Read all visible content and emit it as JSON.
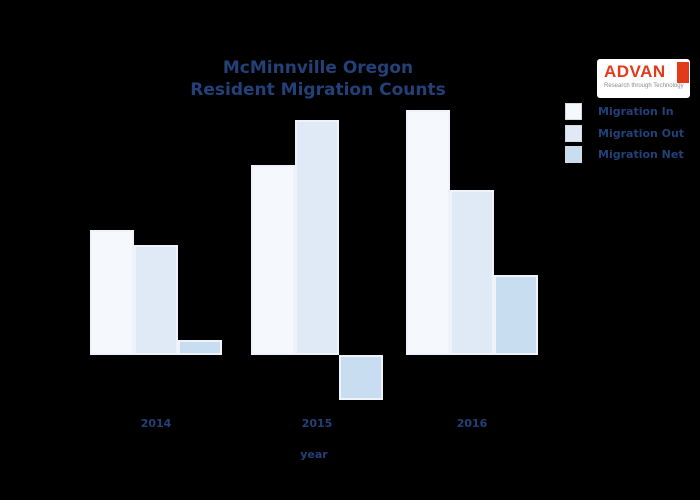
{
  "page": {
    "background": "#000000",
    "text_color": "#234178"
  },
  "chart_data": {
    "type": "bar",
    "title": "McMinnville Oregon",
    "subtitle": "Resident Migration Counts",
    "xlabel": "year",
    "ylabel": "",
    "categories": [
      "2014",
      "2015",
      "2016"
    ],
    "series": [
      {
        "name": "Migration In",
        "color": "#f5f9fd",
        "values": [
          125,
          190,
          245
        ]
      },
      {
        "name": "Migration Out",
        "color": "#dfeaf6",
        "values": [
          110,
          235,
          165
        ]
      },
      {
        "name": "Migration Net",
        "color": "#c9ddf1",
        "values": [
          15,
          -45,
          80
        ]
      }
    ],
    "ylim": [
      -60,
      260
    ],
    "grid": false,
    "y_axis_shown": false,
    "legend_position": "upper right",
    "note": "no y-axis labels visible; values estimated from relative bar heights, Net = In - Out"
  },
  "logo": {
    "brand": "ADVAN",
    "tagline": "Research through Technology",
    "brand_color": "#e23a1a",
    "tagline_color": "#8c8c8c",
    "background": "#ffffff"
  }
}
